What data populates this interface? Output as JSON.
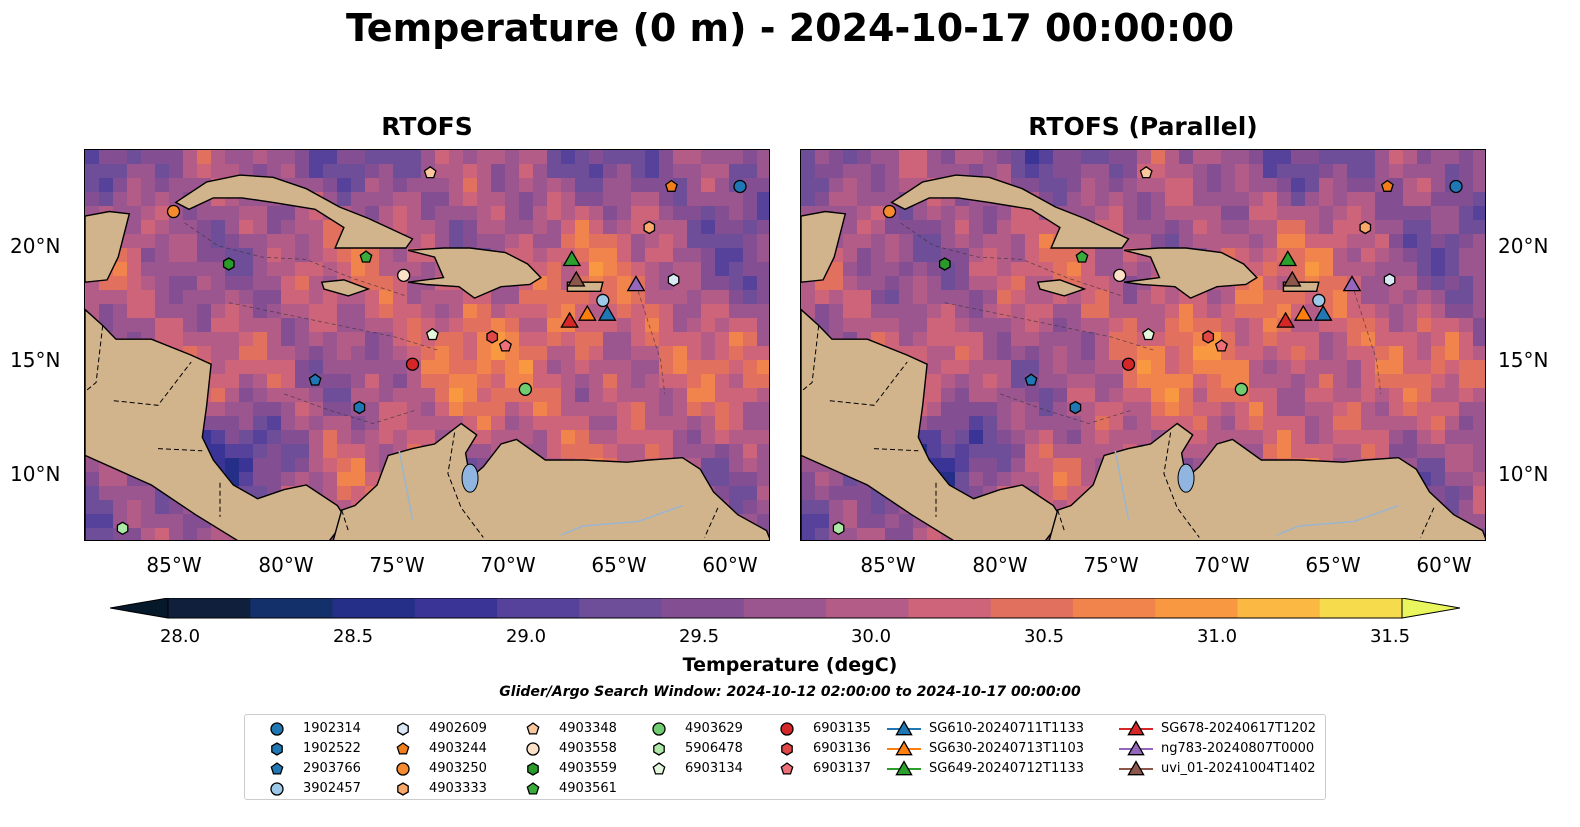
{
  "title": "Temperature (0 m) - 2024-10-17 00:00:00",
  "panels": [
    {
      "title": "RTOFS"
    },
    {
      "title": "RTOFS (Parallel)"
    }
  ],
  "axes": {
    "lon_labels": [
      "85°W",
      "80°W",
      "75°W",
      "70°W",
      "65°W",
      "60°W"
    ],
    "lat_labels": [
      "20°N",
      "15°N",
      "10°N"
    ],
    "lon_range": [
      -89,
      -58
    ],
    "lat_range": [
      7,
      24.2
    ]
  },
  "colorbar": {
    "label": "Temperature (degC)",
    "range": [
      28.0,
      31.5
    ],
    "tick_labels": [
      "28.0",
      "28.5",
      "29.0",
      "29.5",
      "30.0",
      "30.5",
      "31.0",
      "31.5"
    ],
    "colors": [
      "#0f1f3c",
      "#13306a",
      "#262f88",
      "#3b3497",
      "#56429a",
      "#6e4e98",
      "#844f92",
      "#9b558f",
      "#b45c88",
      "#cd6479",
      "#e2705f",
      "#f1834c",
      "#f89941",
      "#fbb843",
      "#f6dc4d"
    ],
    "extend_low_color": "#06192a",
    "extend_high_color": "#e9f65e"
  },
  "search_window": "Glider/Argo Search Window: 2024-10-12 02:00:00 to 2024-10-17 00:00:00",
  "legend": [
    {
      "label": "1902314",
      "marker": "circle",
      "color": "#1f77b4"
    },
    {
      "label": "1902522",
      "marker": "hexagon",
      "color": "#1f77b4"
    },
    {
      "label": "2903766",
      "marker": "pentagon",
      "color": "#1f77b4"
    },
    {
      "label": "3902457",
      "marker": "circle",
      "color": "#9ec8e8"
    },
    {
      "label": "4902609",
      "marker": "hexagon",
      "color": "#dbe9f6"
    },
    {
      "label": "4903244",
      "marker": "pentagon",
      "color": "#f07f1a"
    },
    {
      "label": "4903250",
      "marker": "circle",
      "color": "#f58b2e"
    },
    {
      "label": "4903333",
      "marker": "hexagon",
      "color": "#f9a86a"
    },
    {
      "label": "4903348",
      "marker": "pentagon",
      "color": "#fbc89e"
    },
    {
      "label": "4903558",
      "marker": "circle",
      "color": "#fde0c8"
    },
    {
      "label": "4903559",
      "marker": "hexagon",
      "color": "#2a9a2a"
    },
    {
      "label": "4903561",
      "marker": "pentagon",
      "color": "#3aaa3a"
    },
    {
      "label": "4903629",
      "marker": "circle",
      "color": "#6fcd6f"
    },
    {
      "label": "5906478",
      "marker": "hexagon",
      "color": "#aee8a6"
    },
    {
      "label": "6903134",
      "marker": "pentagon",
      "color": "#e3f7dc"
    },
    {
      "label": "6903135",
      "marker": "circle",
      "color": "#d62728"
    },
    {
      "label": "6903136",
      "marker": "hexagon",
      "color": "#e04848"
    },
    {
      "label": "6903137",
      "marker": "pentagon",
      "color": "#ef6f78"
    },
    {
      "label": "SG610-20240711T1133",
      "marker": "triangle",
      "color": "#1f77b4"
    },
    {
      "label": "SG630-20240713T1103",
      "marker": "triangle",
      "color": "#ff7f0e"
    },
    {
      "label": "SG649-20240712T1133",
      "marker": "triangle",
      "color": "#2ca02c"
    },
    {
      "label": "SG678-20240617T1202",
      "marker": "triangle",
      "color": "#d62728"
    },
    {
      "label": "ng783-20240807T0000",
      "marker": "triangle",
      "color": "#9467bd"
    },
    {
      "label": "uvi_01-20241004T1402",
      "marker": "triangle",
      "color": "#8c564b"
    }
  ],
  "observations": [
    {
      "id": "1902314",
      "lon": -59.4,
      "lat": 22.6
    },
    {
      "id": "1902522",
      "lon": -76.6,
      "lat": 12.9
    },
    {
      "id": "2903766",
      "lon": -78.6,
      "lat": 14.1
    },
    {
      "id": "3902457",
      "lon": -65.6,
      "lat": 17.6
    },
    {
      "id": "4902609",
      "lon": -62.4,
      "lat": 18.5
    },
    {
      "id": "4903244",
      "lon": -62.5,
      "lat": 22.6
    },
    {
      "id": "4903250",
      "lon": -85.0,
      "lat": 21.5
    },
    {
      "id": "4903333",
      "lon": -63.5,
      "lat": 20.8
    },
    {
      "id": "4903348",
      "lon": -73.4,
      "lat": 23.2
    },
    {
      "id": "4903558",
      "lon": -74.6,
      "lat": 18.7
    },
    {
      "id": "4903559",
      "lon": -82.5,
      "lat": 19.2
    },
    {
      "id": "4903561",
      "lon": -76.3,
      "lat": 19.5
    },
    {
      "id": "4903629",
      "lon": -69.1,
      "lat": 13.7
    },
    {
      "id": "5906478",
      "lon": -87.3,
      "lat": 7.6
    },
    {
      "id": "6903134",
      "lon": -73.3,
      "lat": 16.1
    },
    {
      "id": "6903135",
      "lon": -74.2,
      "lat": 14.8
    },
    {
      "id": "6903136",
      "lon": -70.6,
      "lat": 16.0
    },
    {
      "id": "6903137",
      "lon": -70.0,
      "lat": 15.6
    },
    {
      "id": "SG610-20240711T1133",
      "lon": -65.4,
      "lat": 17.0
    },
    {
      "id": "SG630-20240713T1103",
      "lon": -66.3,
      "lat": 17.0
    },
    {
      "id": "SG649-20240712T1133",
      "lon": -67.0,
      "lat": 19.4
    },
    {
      "id": "SG678-20240617T1202",
      "lon": -67.1,
      "lat": 16.7
    },
    {
      "id": "ng783-20240807T0000",
      "lon": -64.1,
      "lat": 18.3
    },
    {
      "id": "uvi_01-20241004T1402",
      "lon": -66.8,
      "lat": 18.5
    }
  ]
}
